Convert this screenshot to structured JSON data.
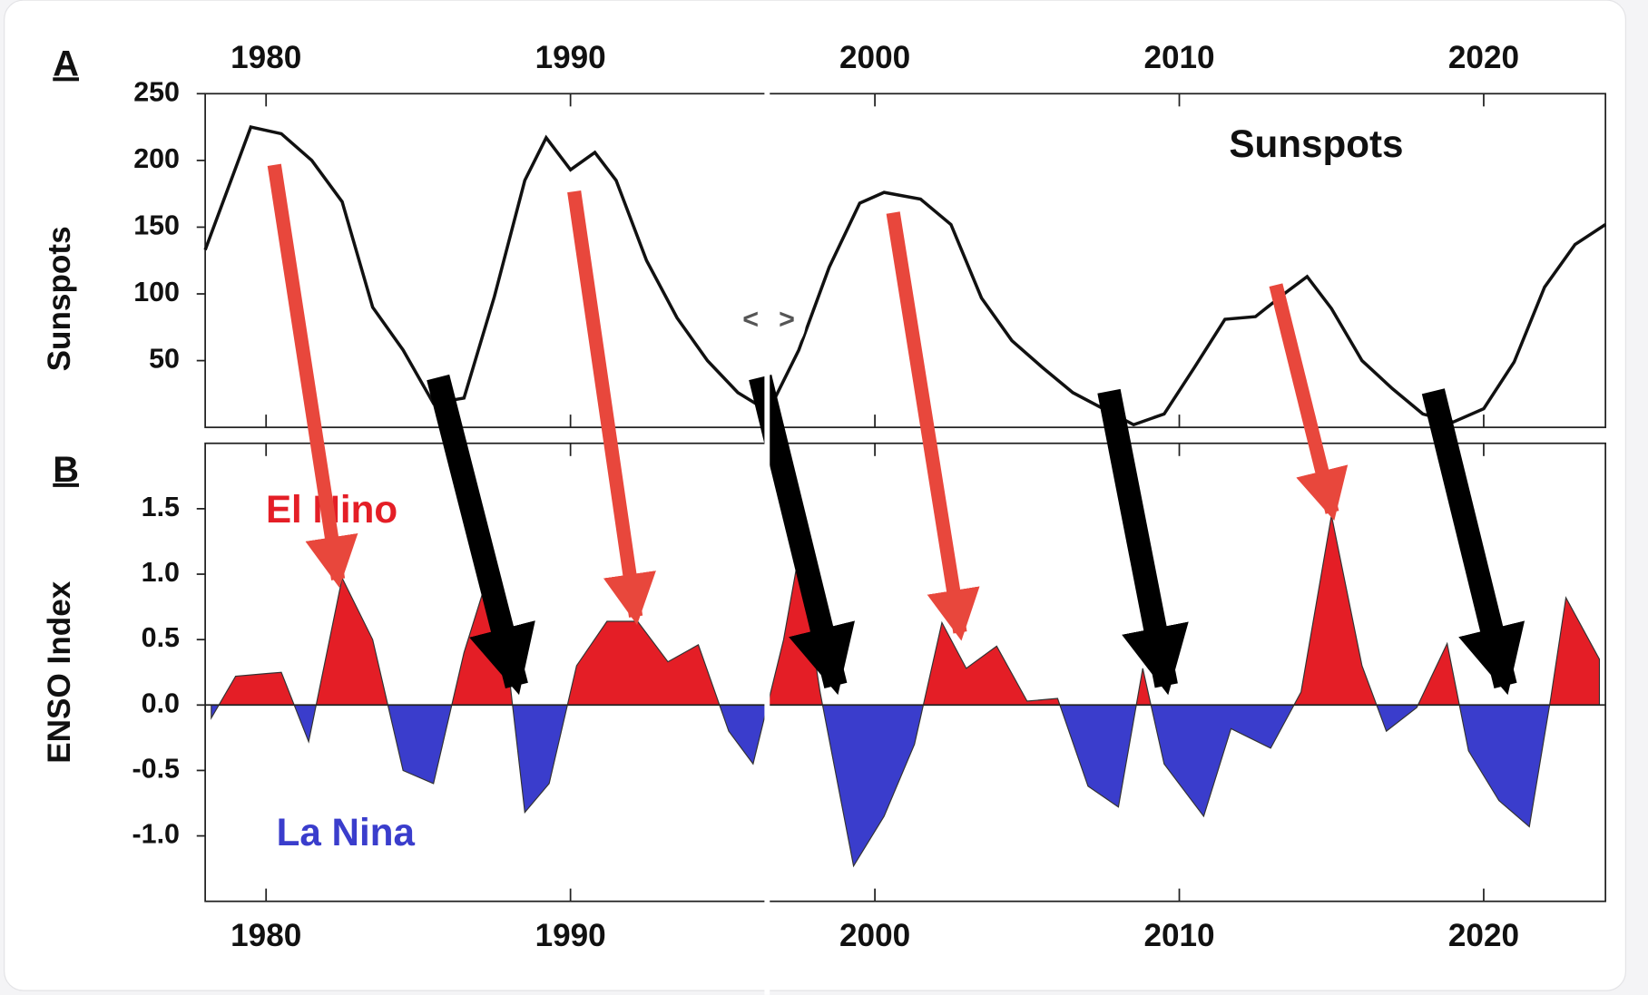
{
  "chart_data": [
    {
      "type": "line",
      "panel_label": "A",
      "ylabel": "Sunspots",
      "x": [
        1978.0,
        1979.5,
        1980.5,
        1981.5,
        1982.5,
        1983.5,
        1984.5,
        1985.5,
        1986.5,
        1987.5,
        1988.5,
        1989.2,
        1990.0,
        1990.8,
        1991.5,
        1992.5,
        1993.5,
        1994.5,
        1995.5,
        1996.5,
        1997.5,
        1998.5,
        1999.5,
        2000.3,
        2001.5,
        2002.5,
        2003.5,
        2004.5,
        2005.5,
        2006.5,
        2007.5,
        2008.5,
        2009.5,
        2010.5,
        2011.5,
        2012.5,
        2013.5,
        2014.2,
        2015.0,
        2016.0,
        2017.0,
        2018.0,
        2019.0,
        2020.0,
        2021.0,
        2022.0,
        2023.0,
        2024.0
      ],
      "series": [
        {
          "name": "Sunspots",
          "color": "#111111",
          "values": [
            133,
            225,
            220,
            200,
            169,
            90,
            58,
            18,
            22,
            98,
            185,
            217,
            193,
            206,
            185,
            125,
            82,
            50,
            26,
            12,
            58,
            120,
            168,
            176,
            171,
            152,
            97,
            65,
            45,
            26,
            14,
            2,
            10,
            45,
            81,
            83,
            101,
            113,
            89,
            50,
            29,
            10,
            4,
            14,
            49,
            105,
            137,
            152
          ]
        }
      ],
      "xlim": [
        1978,
        2024
      ],
      "xticks": [
        1980,
        1990,
        2000,
        2010,
        2020
      ],
      "ylim": [
        0,
        250
      ],
      "yticks": [
        50,
        100,
        150,
        200,
        250
      ]
    },
    {
      "type": "area",
      "panel_label": "B",
      "ylabel": "ENSO Index",
      "annotations": [
        "El Nino",
        "La Nina"
      ],
      "color_positive": "#e41e26",
      "color_negative": "#3a3dcc",
      "x": [
        1978.2,
        1979.0,
        1980.0,
        1980.5,
        1981.4,
        1982.5,
        1983.5,
        1984.5,
        1985.5,
        1986.5,
        1987.2,
        1987.8,
        1988.5,
        1989.3,
        1990.2,
        1991.2,
        1992.2,
        1993.2,
        1994.2,
        1995.2,
        1996.0,
        1997.0,
        1997.5,
        1998.2,
        1999.3,
        2000.3,
        2001.3,
        2002.2,
        2003.0,
        2004.0,
        2005.0,
        2006.0,
        2007.0,
        2008.0,
        2008.8,
        2009.5,
        2010.8,
        2011.7,
        2013.0,
        2014.0,
        2015.0,
        2016.0,
        2016.8,
        2017.8,
        2018.8,
        2019.5,
        2020.5,
        2021.5,
        2022.2,
        2022.7,
        2023.8
      ],
      "values": [
        -0.1,
        0.22,
        0.24,
        0.25,
        -0.28,
        0.97,
        0.5,
        -0.5,
        -0.6,
        0.4,
        0.92,
        0.6,
        -0.82,
        -0.6,
        0.3,
        0.64,
        0.64,
        0.33,
        0.46,
        -0.2,
        -0.45,
        0.5,
        1.15,
        0.1,
        -1.23,
        -0.85,
        -0.3,
        0.63,
        0.28,
        0.45,
        0.03,
        0.05,
        -0.62,
        -0.78,
        0.28,
        -0.45,
        -0.85,
        -0.18,
        -0.33,
        0.1,
        1.45,
        0.3,
        -0.2,
        -0.02,
        0.47,
        -0.35,
        -0.73,
        -0.93,
        0.05,
        0.82,
        0.35
      ],
      "xlim": [
        1978,
        2024
      ],
      "xticks": [
        1980,
        1990,
        2000,
        2010,
        2020
      ],
      "ylim": [
        -1.5,
        2.0
      ],
      "yticks": [
        1.5,
        {
          "value": 1,
          "label": "1.0"
        },
        0.5,
        {
          "value": 0,
          "label": "0.0"
        },
        -0.5,
        {
          "value": -1,
          "label": "-1.0"
        }
      ]
    }
  ],
  "slider": {
    "left": "<",
    "right": ">"
  }
}
